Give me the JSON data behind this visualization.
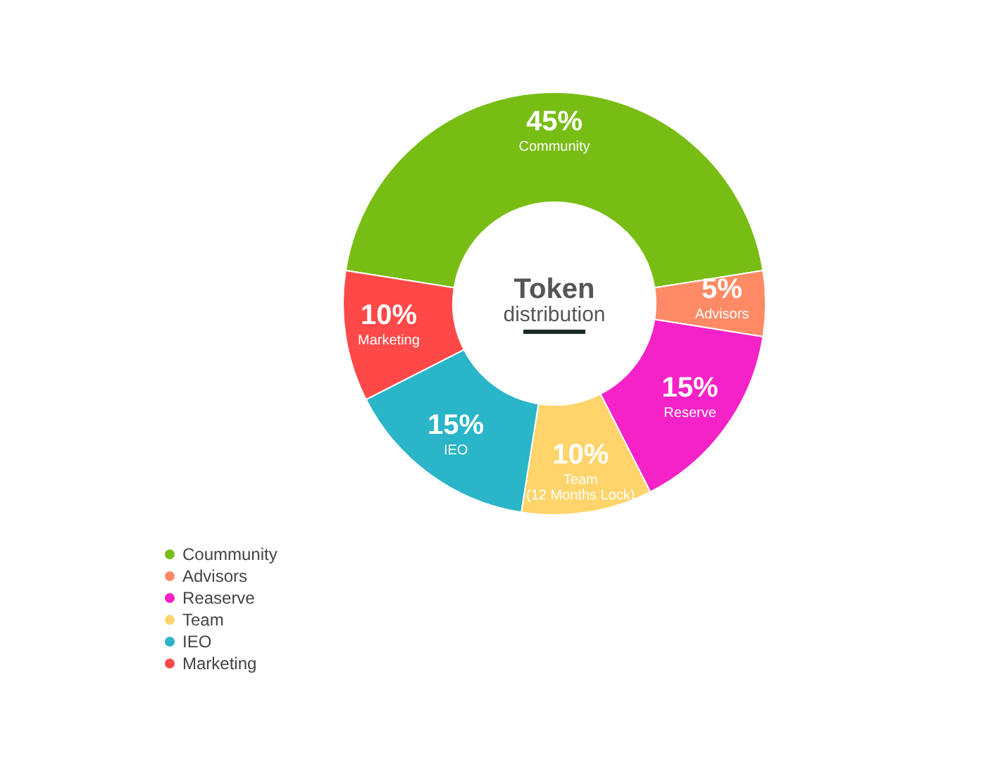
{
  "chart_data": {
    "type": "donut",
    "title": "Token distribution",
    "categories": [
      "Coummunity",
      "Advisors",
      "Reaserve",
      "Team",
      "IEO",
      "Marketing"
    ],
    "values": [
      45,
      5,
      15,
      10,
      15,
      10
    ],
    "colors": [
      "#77bd14",
      "#ff8a65",
      "#f522c8",
      "#ffd46b",
      "#2ab5c8",
      "#ff4848"
    ],
    "value_labels": [
      "45%\nCommunity",
      "5%\nAdvisors",
      "15%\nReserve",
      "10%\nTeam\n(12 Months Lock)",
      "15%\nIEO",
      "10%\nMarketing"
    ],
    "legend": "bottom left"
  }
}
